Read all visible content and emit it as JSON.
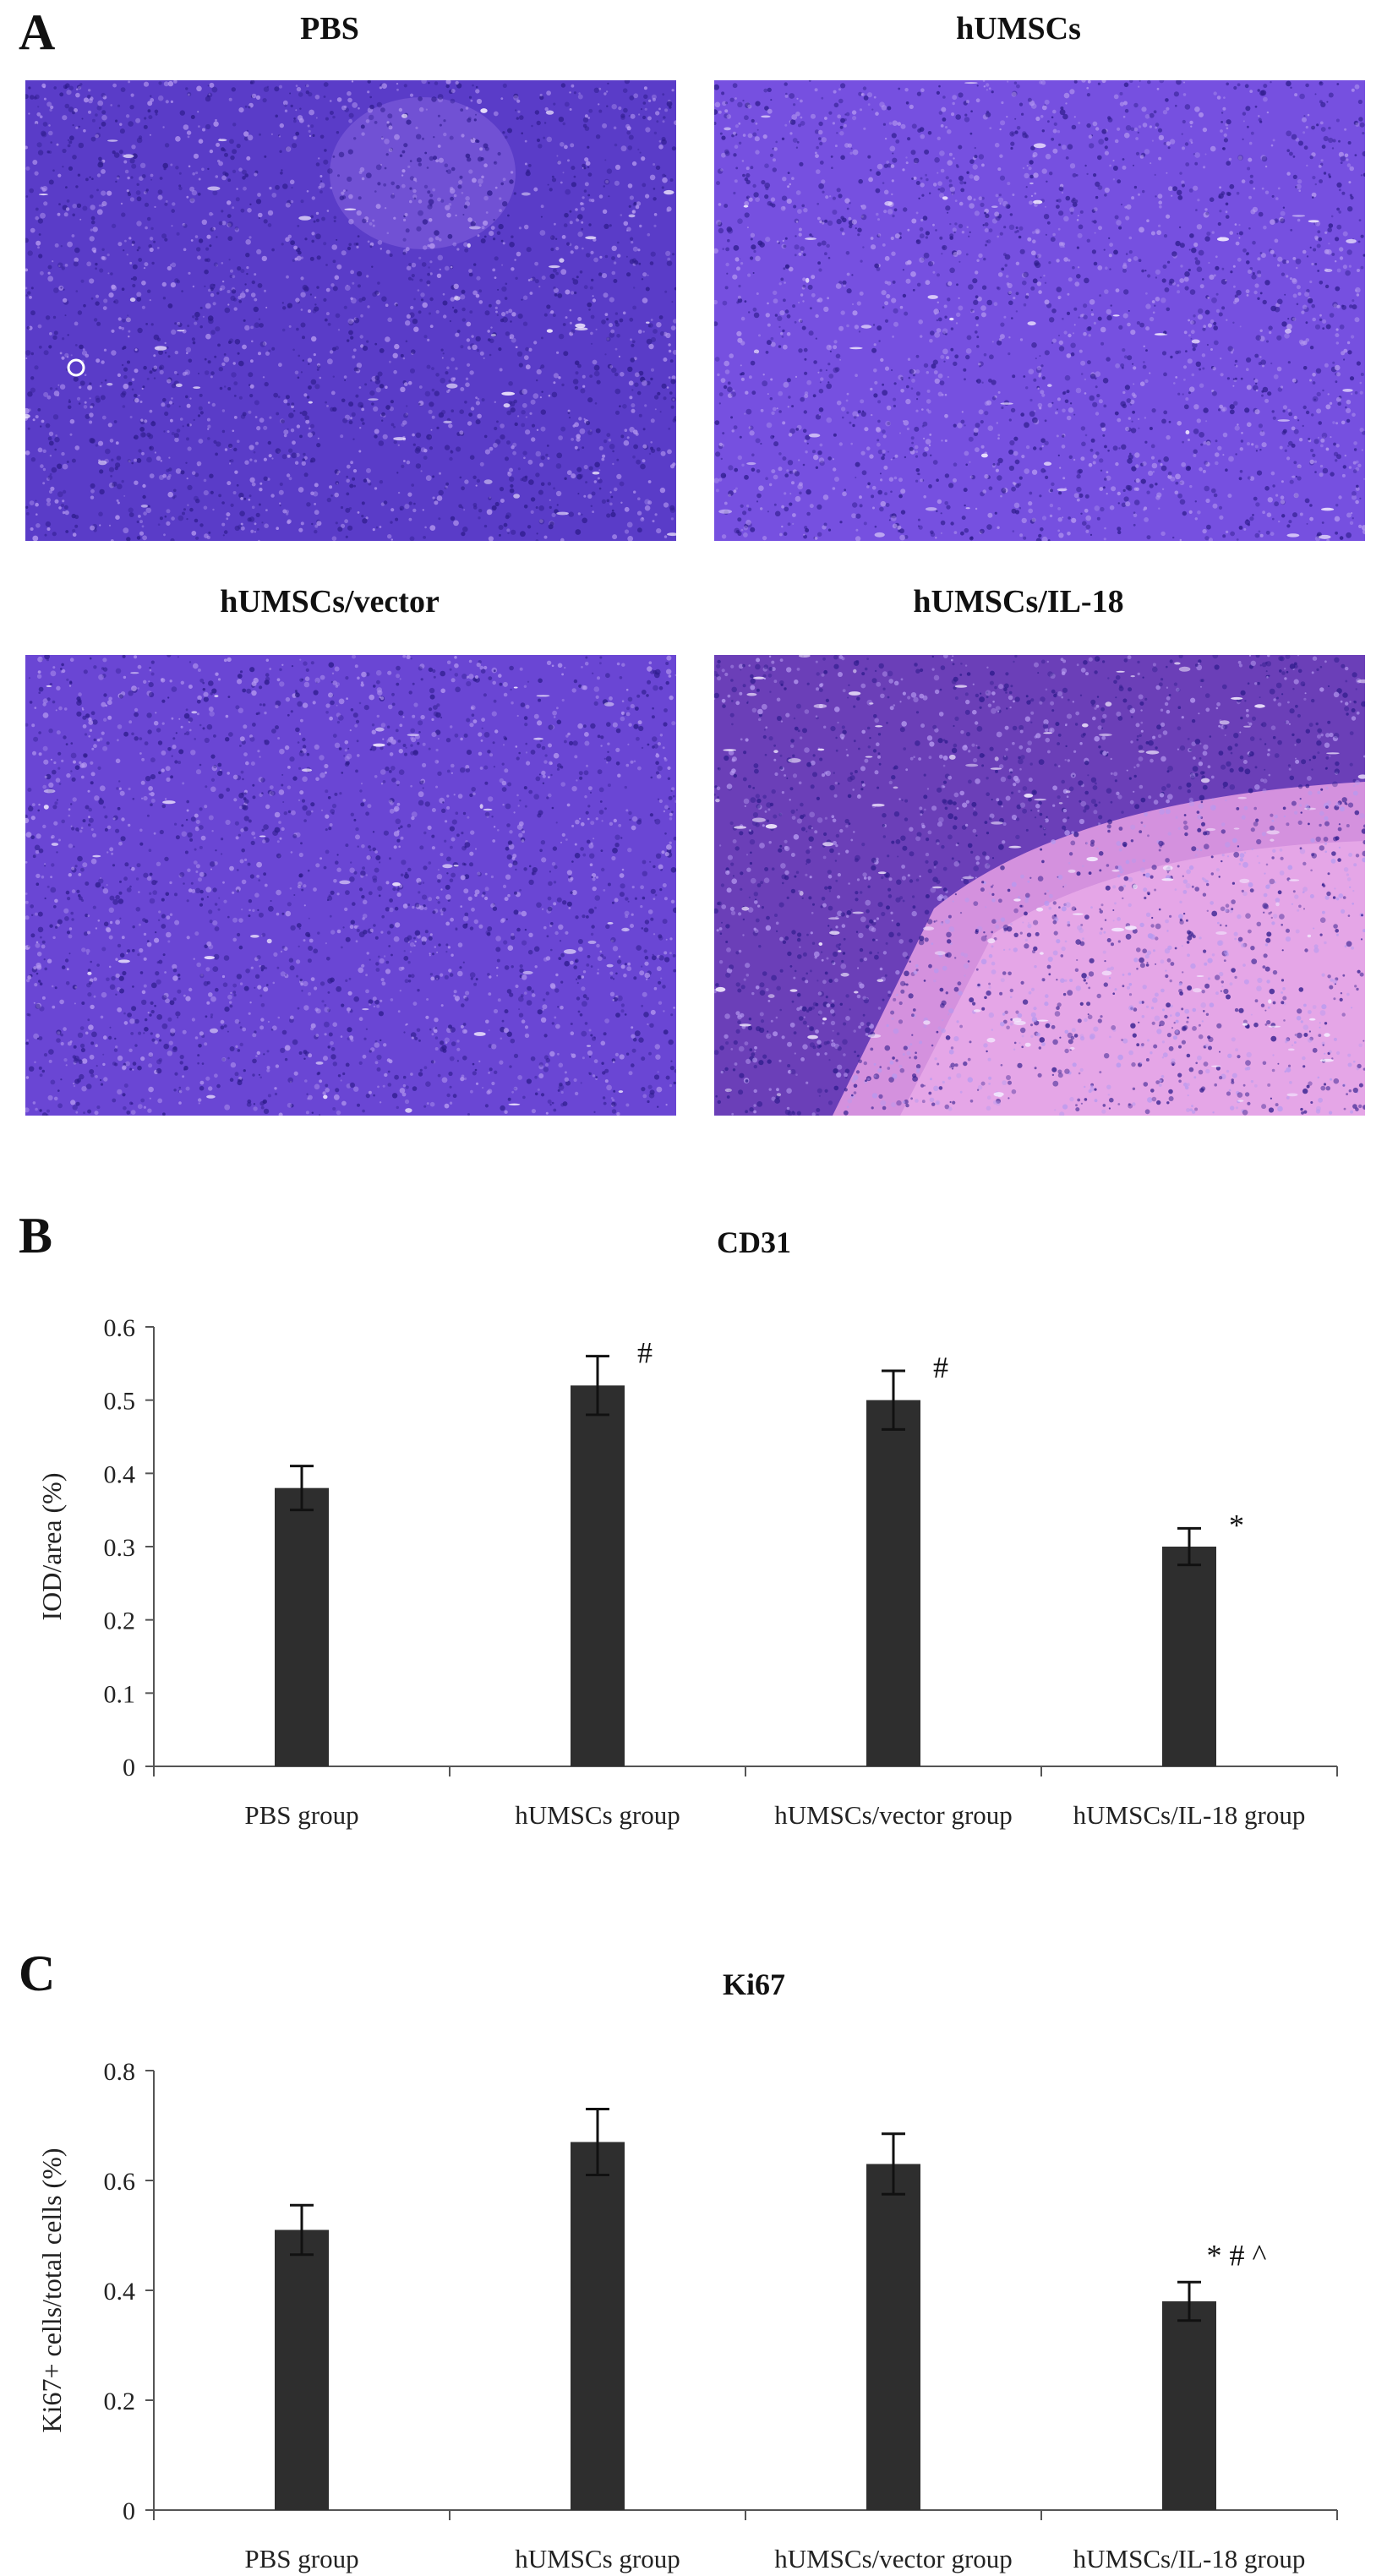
{
  "figure": {
    "panel_a": {
      "letter": "A",
      "images": [
        {
          "title": "PBS",
          "stain_color": "#5a3cc8"
        },
        {
          "title": "hUMSCs",
          "stain_color": "#7650e0"
        },
        {
          "title": "hUMSCs/vector",
          "stain_color": "#6a46d4"
        },
        {
          "title": "hUMSCs/IL-18",
          "stain_color": "#6b3fb8"
        }
      ]
    },
    "panel_b": {
      "letter": "B"
    },
    "panel_c": {
      "letter": "C"
    }
  },
  "chart_data": [
    {
      "type": "bar",
      "title": "CD31",
      "categories": [
        "PBS group",
        "hUMSCs group",
        "hUMSCs/vector group",
        "hUMSCs/IL-18 group"
      ],
      "values": [
        0.38,
        0.52,
        0.5,
        0.3
      ],
      "errors": [
        0.03,
        0.04,
        0.04,
        0.025
      ],
      "annotations": [
        "",
        "#",
        "#",
        "*"
      ],
      "xlabel": "",
      "ylabel": "IOD/area (%)",
      "ylim": [
        0,
        0.6
      ],
      "yticks": [
        "0",
        "0.1",
        "0.2",
        "0.3",
        "0.4",
        "0.5",
        "0.6"
      ],
      "bar_color": "#2e2e2e",
      "grid": false
    },
    {
      "type": "bar",
      "title": "Ki67",
      "categories": [
        "PBS group",
        "hUMSCs group",
        "hUMSCs/vector group",
        "hUMSCs/IL-18 group"
      ],
      "values": [
        0.51,
        0.67,
        0.63,
        0.38
      ],
      "errors": [
        0.045,
        0.06,
        0.055,
        0.035
      ],
      "annotations": [
        "",
        "",
        "",
        "* # ^"
      ],
      "xlabel": "",
      "ylabel": "Ki67+ cells/total cells (%)",
      "ylim": [
        0,
        0.8
      ],
      "yticks": [
        "0",
        "0.2",
        "0.4",
        "0.6",
        "0.8"
      ],
      "bar_color": "#2e2e2e",
      "grid": false
    }
  ]
}
